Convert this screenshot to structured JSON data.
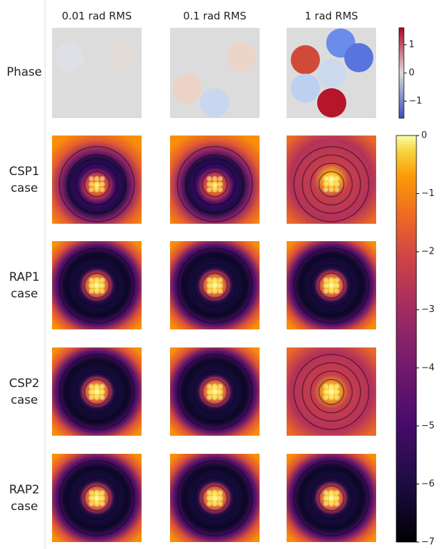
{
  "columns": [
    "0.01 rad RMS",
    "0.1 rad RMS",
    "1 rad RMS"
  ],
  "rows": [
    "Phase",
    "CSP1 case",
    "RAP1 case",
    "CSP2 case",
    "RAP2 case"
  ],
  "phase_colorbar": {
    "lim": [
      -1.6,
      1.6
    ],
    "ticks": [
      1,
      0,
      {
        "value": -1,
        "label": "−1"
      }
    ]
  },
  "intensity_colorbar": {
    "lim": [
      -7,
      0
    ],
    "ticks": [
      0,
      {
        "value": -1,
        "label": "−1"
      },
      {
        "value": -2,
        "label": "−2"
      },
      {
        "value": -3,
        "label": "−3"
      },
      {
        "value": -4,
        "label": "−4"
      },
      {
        "value": -5,
        "label": "−5"
      },
      {
        "value": -6,
        "label": "−6"
      },
      {
        "value": -7,
        "label": "−7"
      }
    ]
  }
}
